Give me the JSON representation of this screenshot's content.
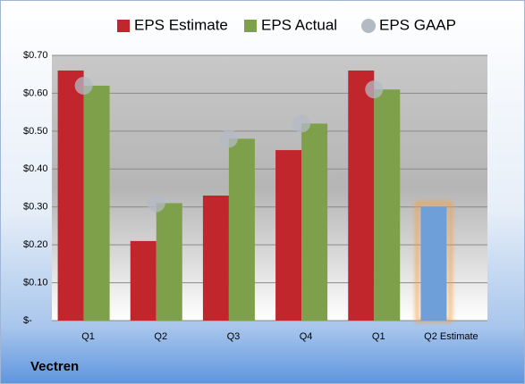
{
  "chart_data": {
    "type": "bar",
    "title": "Vectren",
    "categories": [
      "Q1",
      "Q2",
      "Q3",
      "Q4",
      "Q1",
      "Q2 Estimate"
    ],
    "series": [
      {
        "name": "EPS Estimate",
        "color": "#c0262c",
        "point_colors": [
          "#c0262c",
          "#c0262c",
          "#c0262c",
          "#c0262c",
          "#c0262c",
          "#6f9fd8"
        ],
        "values": [
          0.66,
          0.21,
          0.33,
          0.45,
          0.66,
          0.3
        ]
      },
      {
        "name": "EPS Actual",
        "color": "#7ea04a",
        "values": [
          0.62,
          0.31,
          0.48,
          0.52,
          0.61,
          null
        ]
      },
      {
        "name": "EPS GAAP",
        "color": "#b4bac4",
        "marker": "circle",
        "values": [
          0.62,
          0.31,
          0.48,
          0.52,
          0.61,
          null
        ]
      }
    ],
    "ylim": [
      0,
      0.7
    ],
    "yticks": [
      {
        "value": 0,
        "label": "$-"
      },
      {
        "value": 0.1,
        "label": "$0.10"
      },
      {
        "value": 0.2,
        "label": "$0.20"
      },
      {
        "value": 0.3,
        "label": "$0.30"
      },
      {
        "value": 0.4,
        "label": "$0.40"
      },
      {
        "value": 0.5,
        "label": "$0.50"
      },
      {
        "value": 0.6,
        "label": "$0.60"
      },
      {
        "value": 0.7,
        "label": "$0.70"
      }
    ],
    "grid": true,
    "legend": "top"
  }
}
